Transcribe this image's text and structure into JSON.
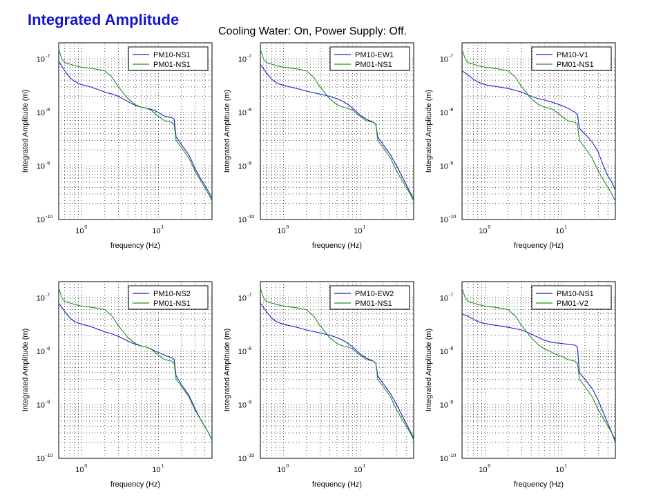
{
  "header": {
    "title": "Integrated Amplitude",
    "subtitle": "Cooling Water: On, Power Supply: Off."
  },
  "colors": {
    "series1": "#1f1fcc",
    "series2": "#1d8f1d",
    "title": "#1515d0"
  },
  "chart_data": [
    {
      "type": "line",
      "xlabel": "frequency (Hz)",
      "ylabel": "Integrated Amplitude (m)",
      "xscale": "log",
      "yscale": "log",
      "xlim": [
        0.5,
        50
      ],
      "ylim": [
        1e-10,
        2e-07
      ],
      "grid": true,
      "legend": "top-right",
      "xticks": [
        {
          "base": "10",
          "exp": "0",
          "v": 1
        },
        {
          "base": "10",
          "exp": "1",
          "v": 10
        }
      ],
      "yticks": [
        {
          "base": "10",
          "exp": "-10",
          "v": 1e-10
        },
        {
          "base": "10",
          "exp": "-9",
          "v": 1e-09
        },
        {
          "base": "10",
          "exp": "-8",
          "v": 1e-08
        },
        {
          "base": "10",
          "exp": "-7",
          "v": 1e-07
        }
      ],
      "series": [
        {
          "name": "PM10-NS1",
          "x": [
            0.5,
            0.6,
            0.7,
            0.8,
            1.0,
            1.3,
            1.6,
            2.0,
            2.5,
            3.0,
            4.0,
            5.0,
            6.0,
            7.0,
            8.0,
            10,
            12,
            15,
            16,
            17,
            20,
            25,
            30,
            35,
            40,
            45,
            50
          ],
          "y": [
            9e-08,
            6e-08,
            4.5e-08,
            3.8e-08,
            3.3e-08,
            3e-08,
            2.7e-08,
            2.4e-08,
            2.2e-08,
            2e-08,
            1.6e-08,
            1.35e-08,
            1.25e-08,
            1.2e-08,
            1.15e-08,
            1e-08,
            8.5e-09,
            8e-09,
            7.5e-09,
            3.5e-09,
            2.5e-09,
            1.6e-09,
            9e-10,
            6e-10,
            4.5e-10,
            3.3e-10,
            2.5e-10
          ]
        },
        {
          "name": "PM01-NS1",
          "x": [
            0.5,
            0.55,
            0.6,
            0.7,
            0.8,
            1.0,
            1.5,
            2.0,
            2.5,
            3.0,
            3.5,
            4.0,
            5.0,
            6.0,
            7.0,
            8.0,
            10,
            12,
            15,
            16,
            17,
            20,
            25,
            30,
            35,
            40,
            45,
            50
          ],
          "y": [
            1.5e-07,
            1e-07,
            8.5e-08,
            8e-08,
            7.5e-08,
            7e-08,
            6.5e-08,
            6e-08,
            4.5e-08,
            3e-08,
            2.3e-08,
            1.8e-08,
            1.4e-08,
            1.25e-08,
            1.2e-08,
            1.1e-08,
            8.5e-09,
            7e-09,
            6.5e-09,
            6e-09,
            3e-09,
            2.2e-09,
            1.4e-09,
            8e-10,
            5.5e-10,
            4e-10,
            3e-10,
            2.2e-10
          ]
        }
      ]
    },
    {
      "type": "line",
      "xlabel": "frequency (Hz)",
      "ylabel": "Integrated Amplitude (m)",
      "xscale": "log",
      "yscale": "log",
      "xlim": [
        0.5,
        50
      ],
      "ylim": [
        1e-10,
        2e-07
      ],
      "grid": true,
      "legend": "top-right",
      "xticks": [
        {
          "base": "10",
          "exp": "0",
          "v": 1
        },
        {
          "base": "10",
          "exp": "1",
          "v": 10
        }
      ],
      "yticks": [
        {
          "base": "10",
          "exp": "-10",
          "v": 1e-10
        },
        {
          "base": "10",
          "exp": "-9",
          "v": 1e-09
        },
        {
          "base": "10",
          "exp": "-8",
          "v": 1e-08
        },
        {
          "base": "10",
          "exp": "-7",
          "v": 1e-07
        }
      ],
      "series": [
        {
          "name": "PM10-EW1",
          "x": [
            0.5,
            0.6,
            0.7,
            0.8,
            1.0,
            1.5,
            2.0,
            3.0,
            4.0,
            5.0,
            6.0,
            7.0,
            8.0,
            10,
            12,
            15,
            16,
            17,
            20,
            25,
            30,
            35,
            40,
            45,
            50
          ],
          "y": [
            8e-08,
            5.5e-08,
            4.2e-08,
            3.6e-08,
            3.2e-08,
            2.8e-08,
            2.5e-08,
            2.2e-08,
            2e-08,
            1.8e-08,
            1.6e-08,
            1.4e-08,
            1.2e-08,
            9e-09,
            7.5e-09,
            6.5e-09,
            6e-09,
            3.5e-09,
            2.5e-09,
            1.6e-09,
            1e-09,
            6.5e-10,
            4.5e-10,
            3.2e-10,
            2.4e-10
          ]
        },
        {
          "name": "PM01-NS1",
          "x": [
            0.5,
            0.55,
            0.6,
            0.7,
            0.8,
            1.0,
            1.5,
            2.0,
            2.5,
            3.0,
            3.5,
            4.0,
            5.0,
            6.0,
            7.0,
            8.0,
            10,
            12,
            15,
            16,
            17,
            20,
            25,
            30,
            35,
            40,
            45,
            50
          ],
          "y": [
            1.5e-07,
            1e-07,
            8.5e-08,
            8e-08,
            7.5e-08,
            7e-08,
            6.5e-08,
            6e-08,
            4.5e-08,
            3e-08,
            2.3e-08,
            1.8e-08,
            1.4e-08,
            1.25e-08,
            1.2e-08,
            1.1e-08,
            8.5e-09,
            7e-09,
            6.5e-09,
            6e-09,
            3e-09,
            2.2e-09,
            1.4e-09,
            8e-10,
            5.5e-10,
            4e-10,
            3e-10,
            2.2e-10
          ]
        }
      ]
    },
    {
      "type": "line",
      "xlabel": "frequency (Hz)",
      "ylabel": "Integrated Amplitude (m)",
      "xscale": "log",
      "yscale": "log",
      "xlim": [
        0.5,
        50
      ],
      "ylim": [
        1e-10,
        2e-07
      ],
      "grid": true,
      "legend": "top-right",
      "xticks": [
        {
          "base": "10",
          "exp": "0",
          "v": 1
        },
        {
          "base": "10",
          "exp": "1",
          "v": 10
        }
      ],
      "yticks": [
        {
          "base": "10",
          "exp": "-10",
          "v": 1e-10
        },
        {
          "base": "10",
          "exp": "-9",
          "v": 1e-09
        },
        {
          "base": "10",
          "exp": "-8",
          "v": 1e-08
        },
        {
          "base": "10",
          "exp": "-7",
          "v": 1e-07
        }
      ],
      "series": [
        {
          "name": "PM10-V1",
          "x": [
            0.5,
            0.6,
            0.7,
            0.8,
            1.0,
            1.5,
            2.0,
            3.0,
            4.0,
            5.0,
            6.0,
            7.0,
            8.0,
            10,
            12,
            15,
            16,
            17,
            20,
            25,
            30,
            35,
            40,
            45,
            50
          ],
          "y": [
            6e-08,
            5e-08,
            4.2e-08,
            3.7e-08,
            3.3e-08,
            3e-08,
            2.8e-08,
            2.4e-08,
            2e-08,
            1.8e-08,
            1.7e-08,
            1.6e-08,
            1.5e-08,
            1.35e-08,
            1.2e-08,
            1e-08,
            9e-09,
            5e-09,
            4e-09,
            2.8e-09,
            1.8e-09,
            1e-09,
            6.5e-10,
            5e-10,
            3.5e-10
          ]
        },
        {
          "name": "PM01-NS1",
          "x": [
            0.5,
            0.55,
            0.6,
            0.7,
            0.8,
            1.0,
            1.5,
            2.0,
            2.5,
            3.0,
            3.5,
            4.0,
            5.0,
            6.0,
            7.0,
            8.0,
            10,
            12,
            15,
            16,
            17,
            20,
            25,
            30,
            35,
            40,
            45,
            50
          ],
          "y": [
            1.5e-07,
            1e-07,
            8.5e-08,
            8e-08,
            7.5e-08,
            7e-08,
            6.5e-08,
            6e-08,
            4.5e-08,
            3e-08,
            2.3e-08,
            1.8e-08,
            1.4e-08,
            1.25e-08,
            1.2e-08,
            1.1e-08,
            8.5e-09,
            7e-09,
            6.5e-09,
            6e-09,
            3e-09,
            2.2e-09,
            1.4e-09,
            8e-10,
            5.5e-10,
            4e-10,
            3e-10,
            2.2e-10
          ]
        }
      ]
    },
    {
      "type": "line",
      "xlabel": "frequency (Hz)",
      "ylabel": "Integrated Amplitude (m)",
      "xscale": "log",
      "yscale": "log",
      "xlim": [
        0.5,
        50
      ],
      "ylim": [
        1e-10,
        2e-07
      ],
      "grid": true,
      "legend": "top-right",
      "xticks": [
        {
          "base": "10",
          "exp": "0",
          "v": 1
        },
        {
          "base": "10",
          "exp": "1",
          "v": 10
        }
      ],
      "yticks": [
        {
          "base": "10",
          "exp": "-10",
          "v": 1e-10
        },
        {
          "base": "10",
          "exp": "-9",
          "v": 1e-09
        },
        {
          "base": "10",
          "exp": "-8",
          "v": 1e-08
        },
        {
          "base": "10",
          "exp": "-7",
          "v": 1e-07
        }
      ],
      "series": [
        {
          "name": "PM10-NS2",
          "x": [
            0.5,
            0.6,
            0.7,
            0.8,
            1.0,
            1.3,
            1.6,
            2.0,
            2.5,
            3.0,
            4.0,
            5.0,
            6.0,
            7.0,
            8.0,
            10,
            12,
            15,
            16,
            17,
            20,
            25,
            30,
            35,
            40,
            45,
            50
          ],
          "y": [
            8e-08,
            5.5e-08,
            4.2e-08,
            3.6e-08,
            3.2e-08,
            2.9e-08,
            2.6e-08,
            2.3e-08,
            2.1e-08,
            1.9e-08,
            1.55e-08,
            1.35e-08,
            1.25e-08,
            1.2e-08,
            1.1e-08,
            9.5e-09,
            8.5e-09,
            7.5e-09,
            7e-09,
            3.5e-09,
            2.4e-09,
            1.5e-09,
            8.5e-10,
            5.5e-10,
            4e-10,
            3e-10,
            2.2e-10
          ]
        },
        {
          "name": "PM01-NS1",
          "x": [
            0.5,
            0.55,
            0.6,
            0.7,
            0.8,
            1.0,
            1.5,
            2.0,
            2.5,
            3.0,
            3.5,
            4.0,
            5.0,
            6.0,
            7.0,
            8.0,
            10,
            12,
            15,
            16,
            17,
            20,
            25,
            30,
            35,
            40,
            45,
            50
          ],
          "y": [
            1.5e-07,
            1e-07,
            8.5e-08,
            8e-08,
            7.5e-08,
            7e-08,
            6.5e-08,
            6e-08,
            4.5e-08,
            3e-08,
            2.3e-08,
            1.8e-08,
            1.4e-08,
            1.25e-08,
            1.2e-08,
            1.1e-08,
            8.5e-09,
            7e-09,
            6.5e-09,
            6e-09,
            3e-09,
            2.2e-09,
            1.4e-09,
            8e-10,
            5.5e-10,
            4e-10,
            3e-10,
            2.2e-10
          ]
        }
      ]
    },
    {
      "type": "line",
      "xlabel": "frequency (Hz)",
      "ylabel": "Integrated Amplitude (m)",
      "xscale": "log",
      "yscale": "log",
      "xlim": [
        0.5,
        50
      ],
      "ylim": [
        1e-10,
        2e-07
      ],
      "grid": true,
      "legend": "top-right",
      "xticks": [
        {
          "base": "10",
          "exp": "0",
          "v": 1
        },
        {
          "base": "10",
          "exp": "1",
          "v": 10
        }
      ],
      "yticks": [
        {
          "base": "10",
          "exp": "-10",
          "v": 1e-10
        },
        {
          "base": "10",
          "exp": "-9",
          "v": 1e-09
        },
        {
          "base": "10",
          "exp": "-8",
          "v": 1e-08
        },
        {
          "base": "10",
          "exp": "-7",
          "v": 1e-07
        }
      ],
      "series": [
        {
          "name": "PM10-EW2",
          "x": [
            0.5,
            0.6,
            0.7,
            0.8,
            1.0,
            1.5,
            2.0,
            3.0,
            4.0,
            5.0,
            6.0,
            7.0,
            8.0,
            10,
            12,
            15,
            16,
            17,
            20,
            25,
            30,
            35,
            40,
            45,
            50
          ],
          "y": [
            8e-08,
            5.5e-08,
            4.2e-08,
            3.6e-08,
            3.2e-08,
            2.8e-08,
            2.5e-08,
            2.2e-08,
            2e-08,
            1.8e-08,
            1.6e-08,
            1.4e-08,
            1.2e-08,
            9e-09,
            7.5e-09,
            6.5e-09,
            6e-09,
            3.5e-09,
            2.5e-09,
            1.6e-09,
            1e-09,
            6.5e-10,
            4.5e-10,
            3.2e-10,
            2.4e-10
          ]
        },
        {
          "name": "PM01-NS1",
          "x": [
            0.5,
            0.55,
            0.6,
            0.7,
            0.8,
            1.0,
            1.5,
            2.0,
            2.5,
            3.0,
            3.5,
            4.0,
            5.0,
            6.0,
            7.0,
            8.0,
            10,
            12,
            15,
            16,
            17,
            20,
            25,
            30,
            35,
            40,
            45,
            50
          ],
          "y": [
            1.5e-07,
            1e-07,
            8.5e-08,
            8e-08,
            7.5e-08,
            7e-08,
            6.5e-08,
            6e-08,
            4.5e-08,
            3e-08,
            2.3e-08,
            1.8e-08,
            1.4e-08,
            1.25e-08,
            1.2e-08,
            1.1e-08,
            8.5e-09,
            7e-09,
            6.5e-09,
            6e-09,
            3e-09,
            2.2e-09,
            1.4e-09,
            8e-10,
            5.5e-10,
            4e-10,
            3e-10,
            2.2e-10
          ]
        }
      ]
    },
    {
      "type": "line",
      "xlabel": "frequency (Hz)",
      "ylabel": "Integrated Amplitude (m)",
      "xscale": "log",
      "yscale": "log",
      "xlim": [
        0.5,
        50
      ],
      "ylim": [
        1e-10,
        2e-07
      ],
      "grid": true,
      "legend": "top-right",
      "xticks": [
        {
          "base": "10",
          "exp": "0",
          "v": 1
        },
        {
          "base": "10",
          "exp": "1",
          "v": 10
        }
      ],
      "yticks": [
        {
          "base": "10",
          "exp": "-10",
          "v": 1e-10
        },
        {
          "base": "10",
          "exp": "-9",
          "v": 1e-09
        },
        {
          "base": "10",
          "exp": "-8",
          "v": 1e-08
        },
        {
          "base": "10",
          "exp": "-7",
          "v": 1e-07
        }
      ],
      "series": [
        {
          "name": "PM10-NS1",
          "x": [
            0.5,
            0.6,
            0.7,
            0.8,
            1.0,
            1.5,
            2.0,
            3.0,
            4.0,
            5.0,
            6.0,
            7.0,
            8.0,
            10,
            12,
            15,
            16,
            17,
            20,
            25,
            30,
            35,
            40,
            45,
            50
          ],
          "y": [
            5e-08,
            4.5e-08,
            4e-08,
            3.6e-08,
            3.3e-08,
            3e-08,
            2.8e-08,
            2.5e-08,
            2.1e-08,
            1.8e-08,
            1.6e-08,
            1.5e-08,
            1.45e-08,
            1.4e-08,
            1.35e-08,
            1.3e-08,
            1.2e-08,
            4e-09,
            3e-09,
            2e-09,
            1.2e-09,
            7e-10,
            4.5e-10,
            3e-10,
            2e-10
          ]
        },
        {
          "name": "PM01-V2",
          "x": [
            0.5,
            0.55,
            0.6,
            0.7,
            0.8,
            1.0,
            1.5,
            2.0,
            2.5,
            3.0,
            3.5,
            4.0,
            5.0,
            6.0,
            7.0,
            8.0,
            10,
            12,
            15,
            16,
            17,
            20,
            25,
            30,
            35,
            40,
            45,
            50
          ],
          "y": [
            1.5e-07,
            1e-07,
            8.5e-08,
            8e-08,
            7.5e-08,
            7e-08,
            6.5e-08,
            6e-08,
            4.5e-08,
            3e-08,
            2.3e-08,
            1.8e-08,
            1.3e-08,
            1.1e-08,
            1e-08,
            9e-09,
            8e-09,
            7e-09,
            6.5e-09,
            6e-09,
            3e-09,
            2.2e-09,
            1.4e-09,
            8e-10,
            5.5e-10,
            4e-10,
            3e-10,
            2.2e-10
          ]
        }
      ]
    }
  ]
}
